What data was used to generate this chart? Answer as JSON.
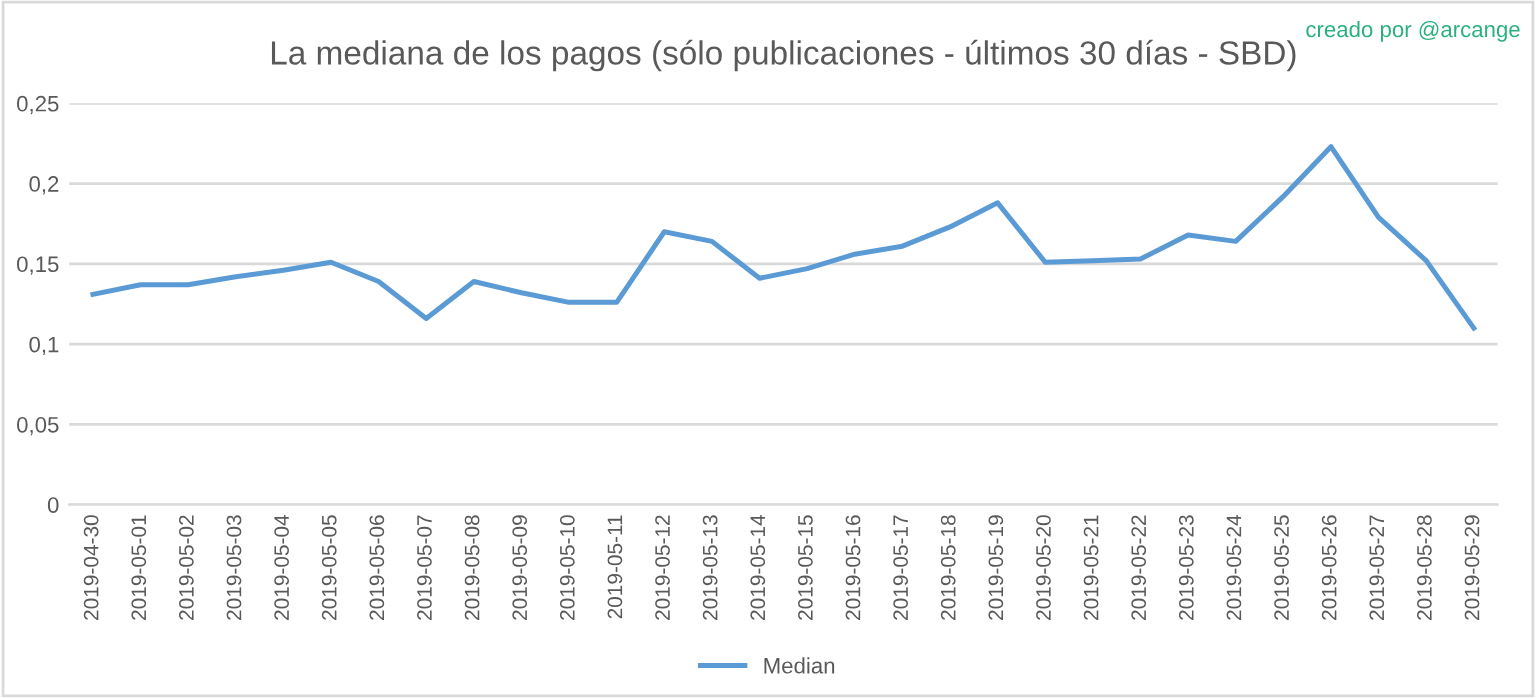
{
  "chart_data": {
    "type": "line",
    "title": "La mediana de los pagos (sólo publicaciones - últimos 30 días - SBD)",
    "annotations": [
      "creado por @arcange"
    ],
    "categories": [
      "2019-04-30",
      "2019-05-01",
      "2019-05-02",
      "2019-05-03",
      "2019-05-04",
      "2019-05-05",
      "2019-05-06",
      "2019-05-07",
      "2019-05-08",
      "2019-05-09",
      "2019-05-10",
      "2019-05-11",
      "2019-05-12",
      "2019-05-13",
      "2019-05-14",
      "2019-05-15",
      "2019-05-16",
      "2019-05-17",
      "2019-05-18",
      "2019-05-19",
      "2019-05-20",
      "2019-05-21",
      "2019-05-22",
      "2019-05-23",
      "2019-05-24",
      "2019-05-25",
      "2019-05-26",
      "2019-05-27",
      "2019-05-28",
      "2019-05-29"
    ],
    "series": [
      {
        "name": "Median",
        "color": "#5b9bd5",
        "values": [
          0.131,
          0.137,
          0.137,
          0.142,
          0.146,
          0.151,
          0.139,
          0.116,
          0.139,
          0.132,
          0.126,
          0.126,
          0.17,
          0.164,
          0.141,
          0.147,
          0.156,
          0.161,
          0.173,
          0.188,
          0.151,
          0.152,
          0.153,
          0.168,
          0.164,
          0.192,
          0.223,
          0.179,
          0.152,
          0.11
        ]
      }
    ],
    "ylim": [
      0,
      0.25
    ],
    "yticks": [
      {
        "value": 0,
        "label": "0"
      },
      {
        "value": 0.05,
        "label": "0,05"
      },
      {
        "value": 0.1,
        "label": "0,1"
      },
      {
        "value": 0.15,
        "label": "0,15"
      },
      {
        "value": 0.2,
        "label": "0,2"
      },
      {
        "value": 0.25,
        "label": "0,25"
      }
    ],
    "grid": "y",
    "legend": "bottom",
    "marker": "none",
    "line_style": "solid"
  }
}
